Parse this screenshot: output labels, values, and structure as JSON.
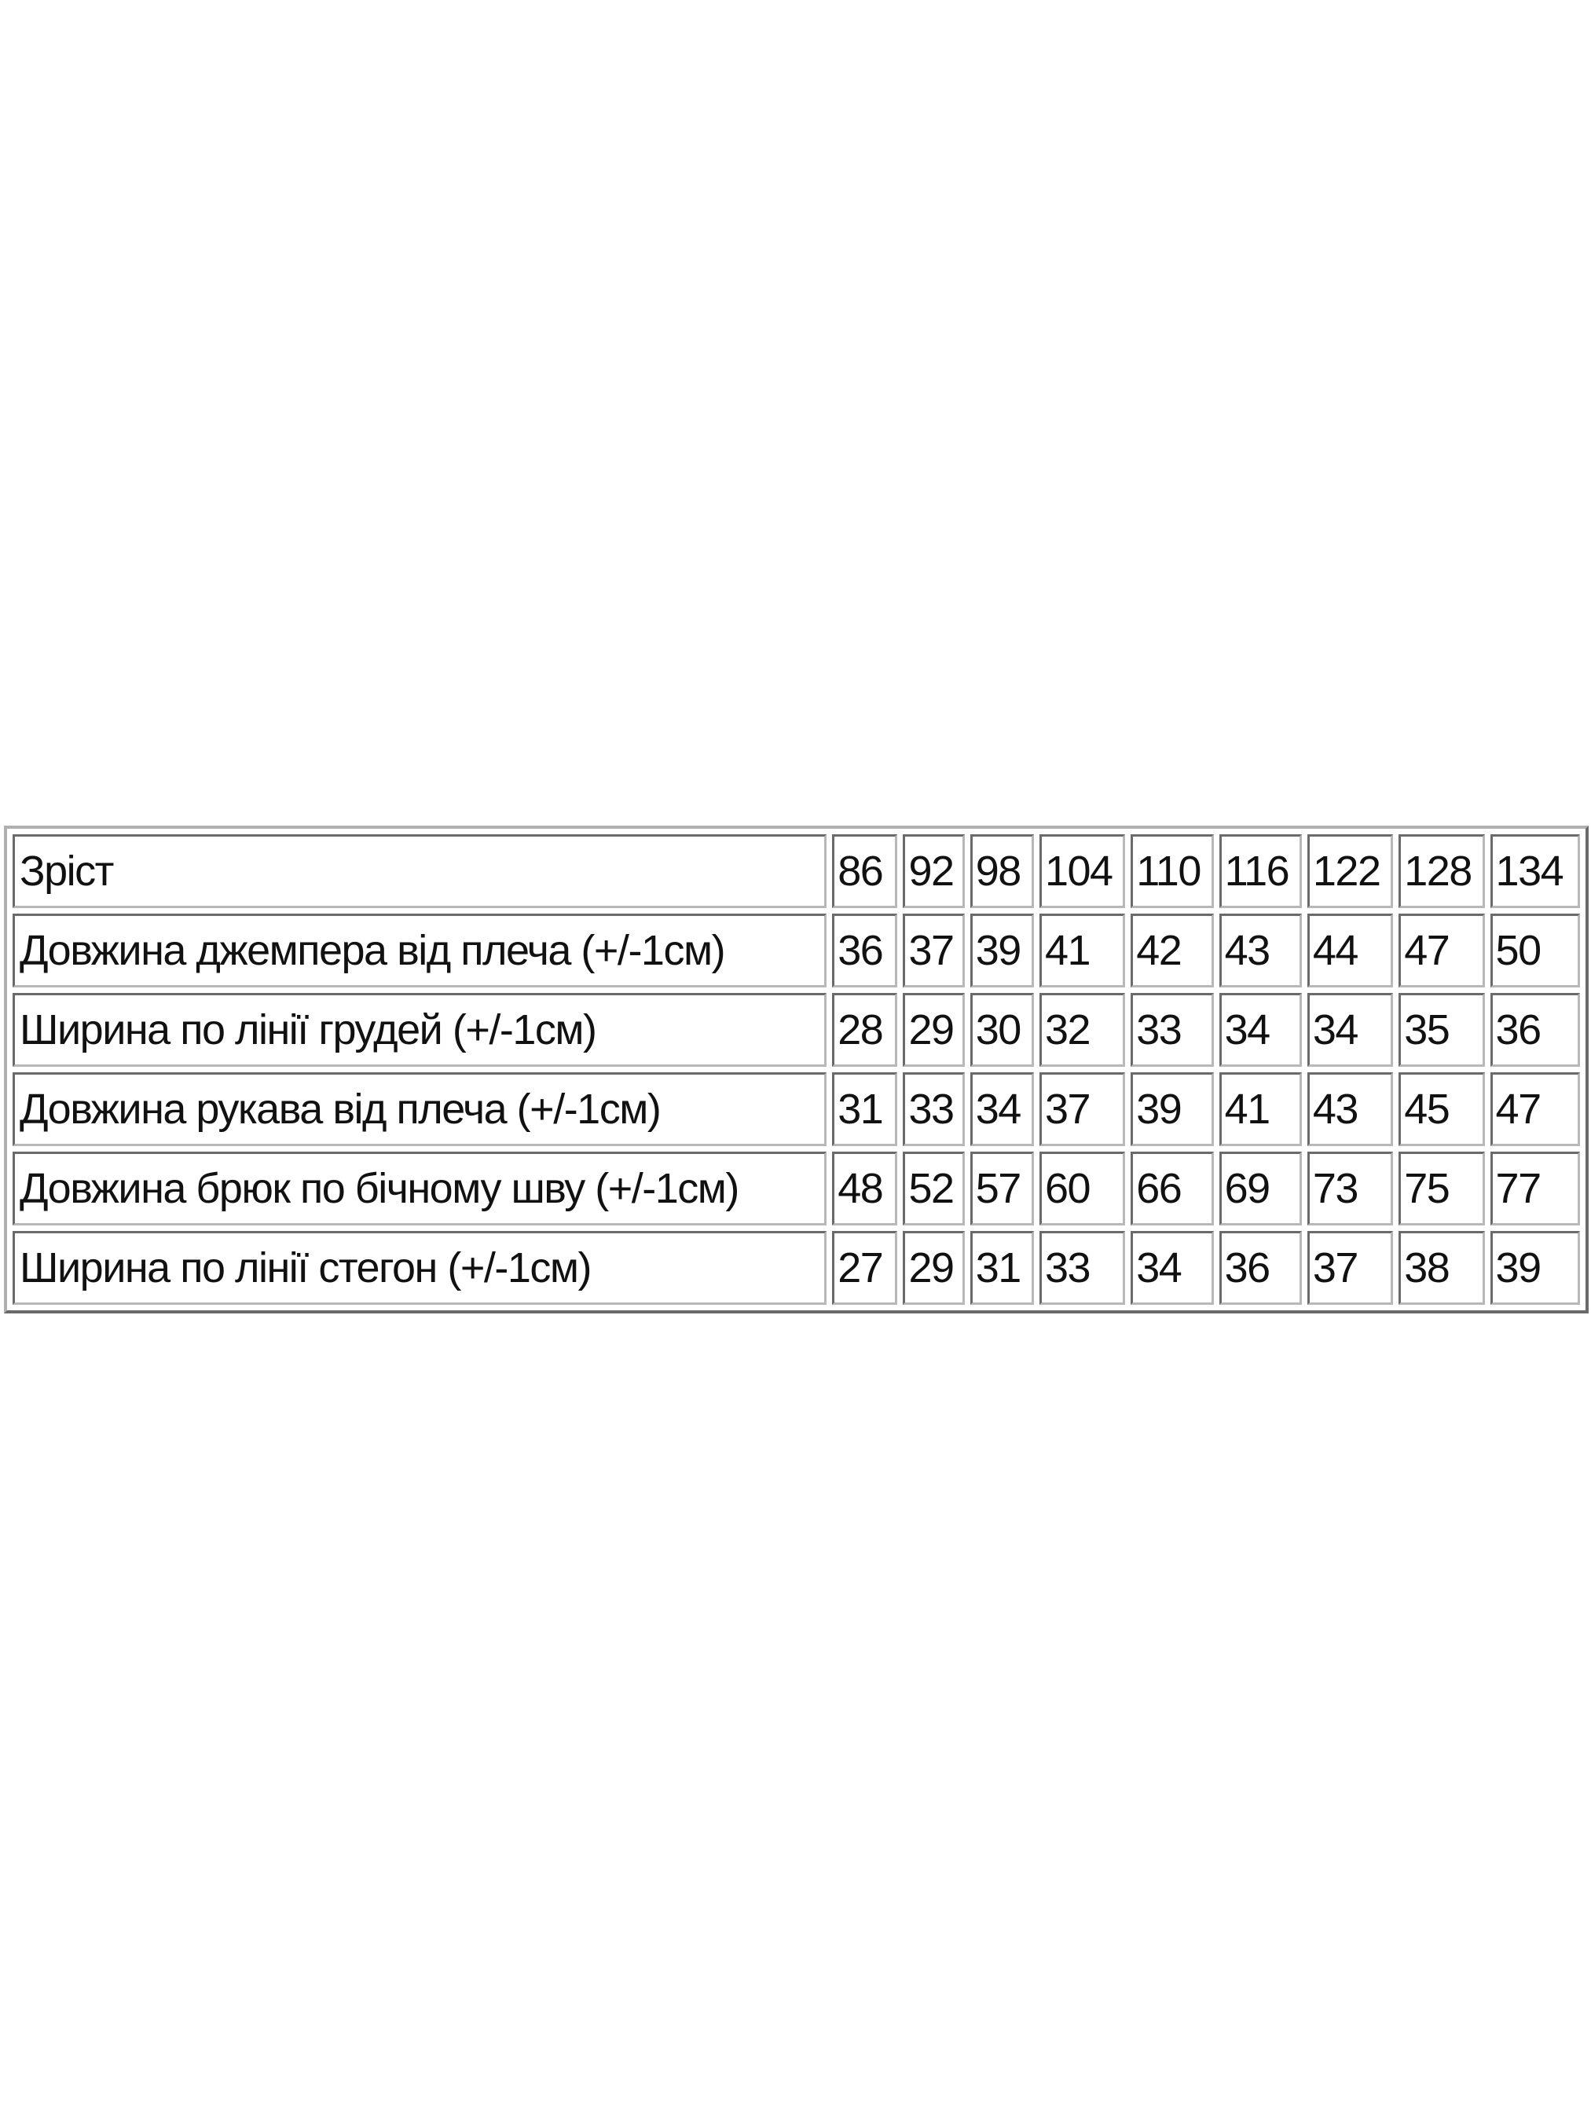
{
  "size_table": {
    "header": {
      "label": "Зріст",
      "values": [
        "86",
        "92",
        "98",
        "104",
        "110",
        "116",
        "122",
        "128",
        "134"
      ]
    },
    "rows": [
      {
        "label": "Довжина джемпера від плеча (+/-1см)",
        "values": [
          "36",
          "37",
          "39",
          "41",
          "42",
          "43",
          "44",
          "47",
          "50"
        ]
      },
      {
        "label": "Ширина по лінії грудей (+/-1см)",
        "values": [
          "28",
          "29",
          "30",
          "32",
          "33",
          "34",
          "34",
          "35",
          "36"
        ]
      },
      {
        "label": "Довжина рукава від плеча (+/-1см)",
        "values": [
          "31",
          "33",
          "34",
          "37",
          "39",
          "41",
          "43",
          "45",
          "47"
        ]
      },
      {
        "label": "Довжина брюк по бічному шву (+/-1см)",
        "values": [
          "48",
          "52",
          "57",
          "60",
          "66",
          "69",
          "73",
          "75",
          "77"
        ]
      },
      {
        "label": "Ширина по лінії стегон (+/-1см)",
        "values": [
          "27",
          "29",
          "31",
          "33",
          "34",
          "36",
          "37",
          "38",
          "39"
        ]
      }
    ]
  }
}
